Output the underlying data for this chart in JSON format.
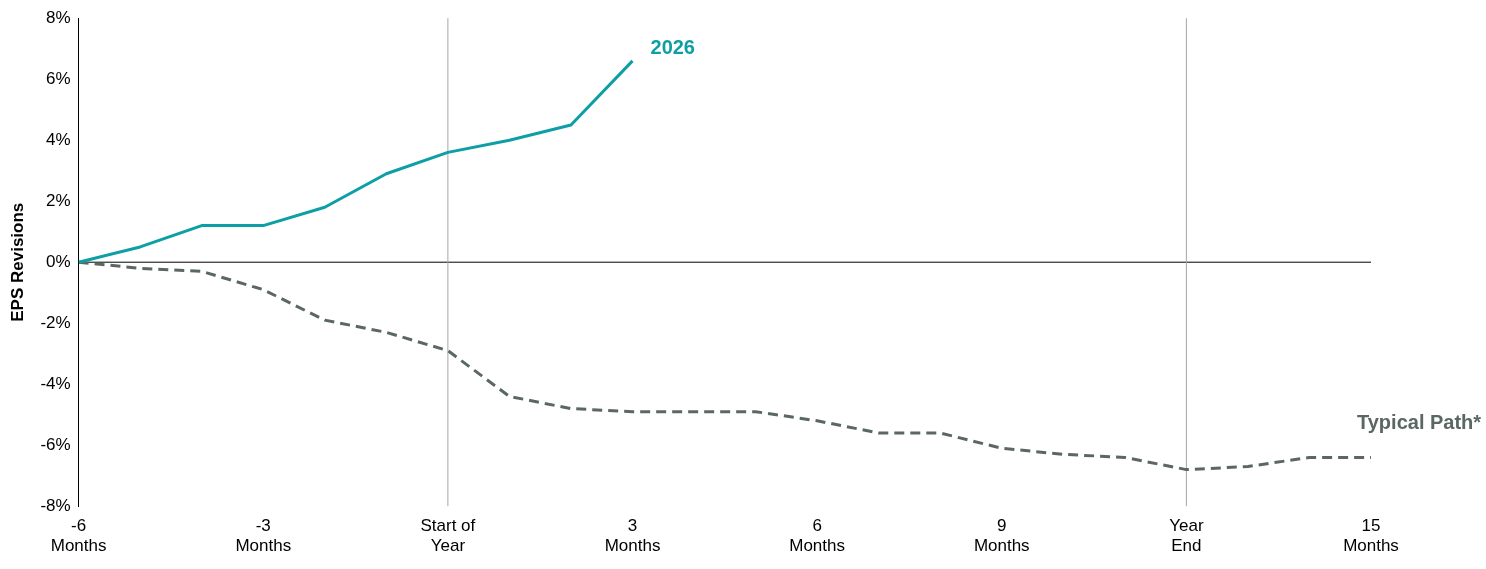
{
  "chart_data": {
    "type": "line",
    "ylabel": "EPS Revisions",
    "xlim": [
      -6,
      15
    ],
    "xticks": [
      {
        "value": -6,
        "label": "-6\nMonths"
      },
      {
        "value": -3,
        "label": "-3\nMonths"
      },
      {
        "value": 0,
        "label": "Start of\nYear"
      },
      {
        "value": 3,
        "label": "3\nMonths"
      },
      {
        "value": 6,
        "label": "6\nMonths"
      },
      {
        "value": 9,
        "label": "9\nMonths"
      },
      {
        "value": 12,
        "label": "Year\nEnd"
      },
      {
        "value": 15,
        "label": "15\nMonths"
      }
    ],
    "ylim": [
      -8,
      8
    ],
    "yticks": [
      {
        "value": -8,
        "label": "-8%"
      },
      {
        "value": -6,
        "label": "-6%"
      },
      {
        "value": -4,
        "label": "-4%"
      },
      {
        "value": -2,
        "label": "-2%"
      },
      {
        "value": 0,
        "label": "0%"
      },
      {
        "value": 2,
        "label": "2%"
      },
      {
        "value": 4,
        "label": "4%"
      },
      {
        "value": 6,
        "label": "6%"
      },
      {
        "value": 8,
        "label": "8%"
      }
    ],
    "grid": false,
    "legend": false,
    "marker": "none",
    "ref_lines": [
      {
        "axis": "y",
        "value": 0,
        "color": "#000000"
      },
      {
        "axis": "x",
        "value": 0,
        "color": "#a6a6a6"
      },
      {
        "axis": "x",
        "value": 12,
        "color": "#a6a6a6"
      }
    ],
    "series": [
      {
        "name": "2026",
        "color": "#0e9ea6",
        "line_style": "solid",
        "x": [
          -6,
          -5,
          -4,
          -3,
          -2,
          -1,
          0,
          1,
          2,
          3
        ],
        "values": [
          0,
          0.5,
          1.2,
          1.2,
          1.8,
          2.9,
          3.6,
          4.0,
          4.5,
          6.6
        ]
      },
      {
        "name": "Typical Path*",
        "color": "#5b6762",
        "line_style": "dashed",
        "x": [
          -6,
          -5,
          -4,
          -3,
          -2,
          -1,
          0,
          1,
          2,
          3,
          4,
          5,
          6,
          7,
          8,
          9,
          10,
          11,
          12,
          13,
          14,
          15
        ],
        "values": [
          0,
          -0.2,
          -0.3,
          -0.9,
          -1.9,
          -2.3,
          -2.9,
          -4.4,
          -4.8,
          -4.9,
          -4.9,
          -4.9,
          -5.2,
          -5.6,
          -5.6,
          -6.1,
          -6.3,
          -6.4,
          -6.8,
          -6.7,
          -6.4,
          -6.4
        ]
      }
    ]
  }
}
